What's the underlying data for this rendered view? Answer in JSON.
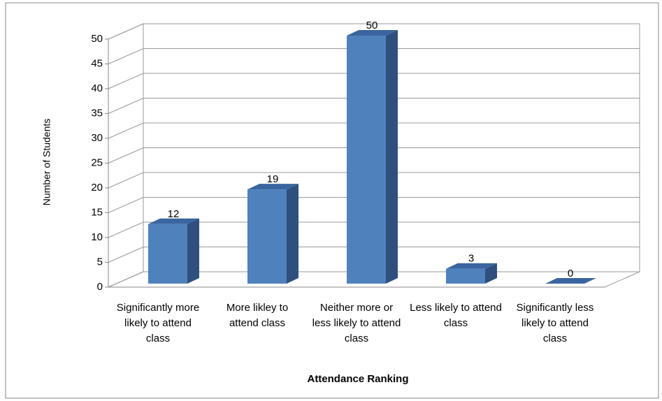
{
  "chart_data": {
    "type": "bar3d",
    "x_label": "Attendance Ranking",
    "y_label": "Number of Students",
    "categories": [
      "Significantly more likely to attend class",
      "More likley to attend class",
      "Neither more or less likely to attend class",
      "Less likely to attend class",
      "Significantly less likely to attend class"
    ],
    "values": [
      12,
      19,
      50,
      3,
      0
    ],
    "color": "#4f81bd",
    "ylim": [
      0,
      50
    ],
    "yticks": [
      0,
      5,
      10,
      15,
      20,
      25,
      30,
      35,
      40,
      45,
      50
    ],
    "grid": true
  }
}
